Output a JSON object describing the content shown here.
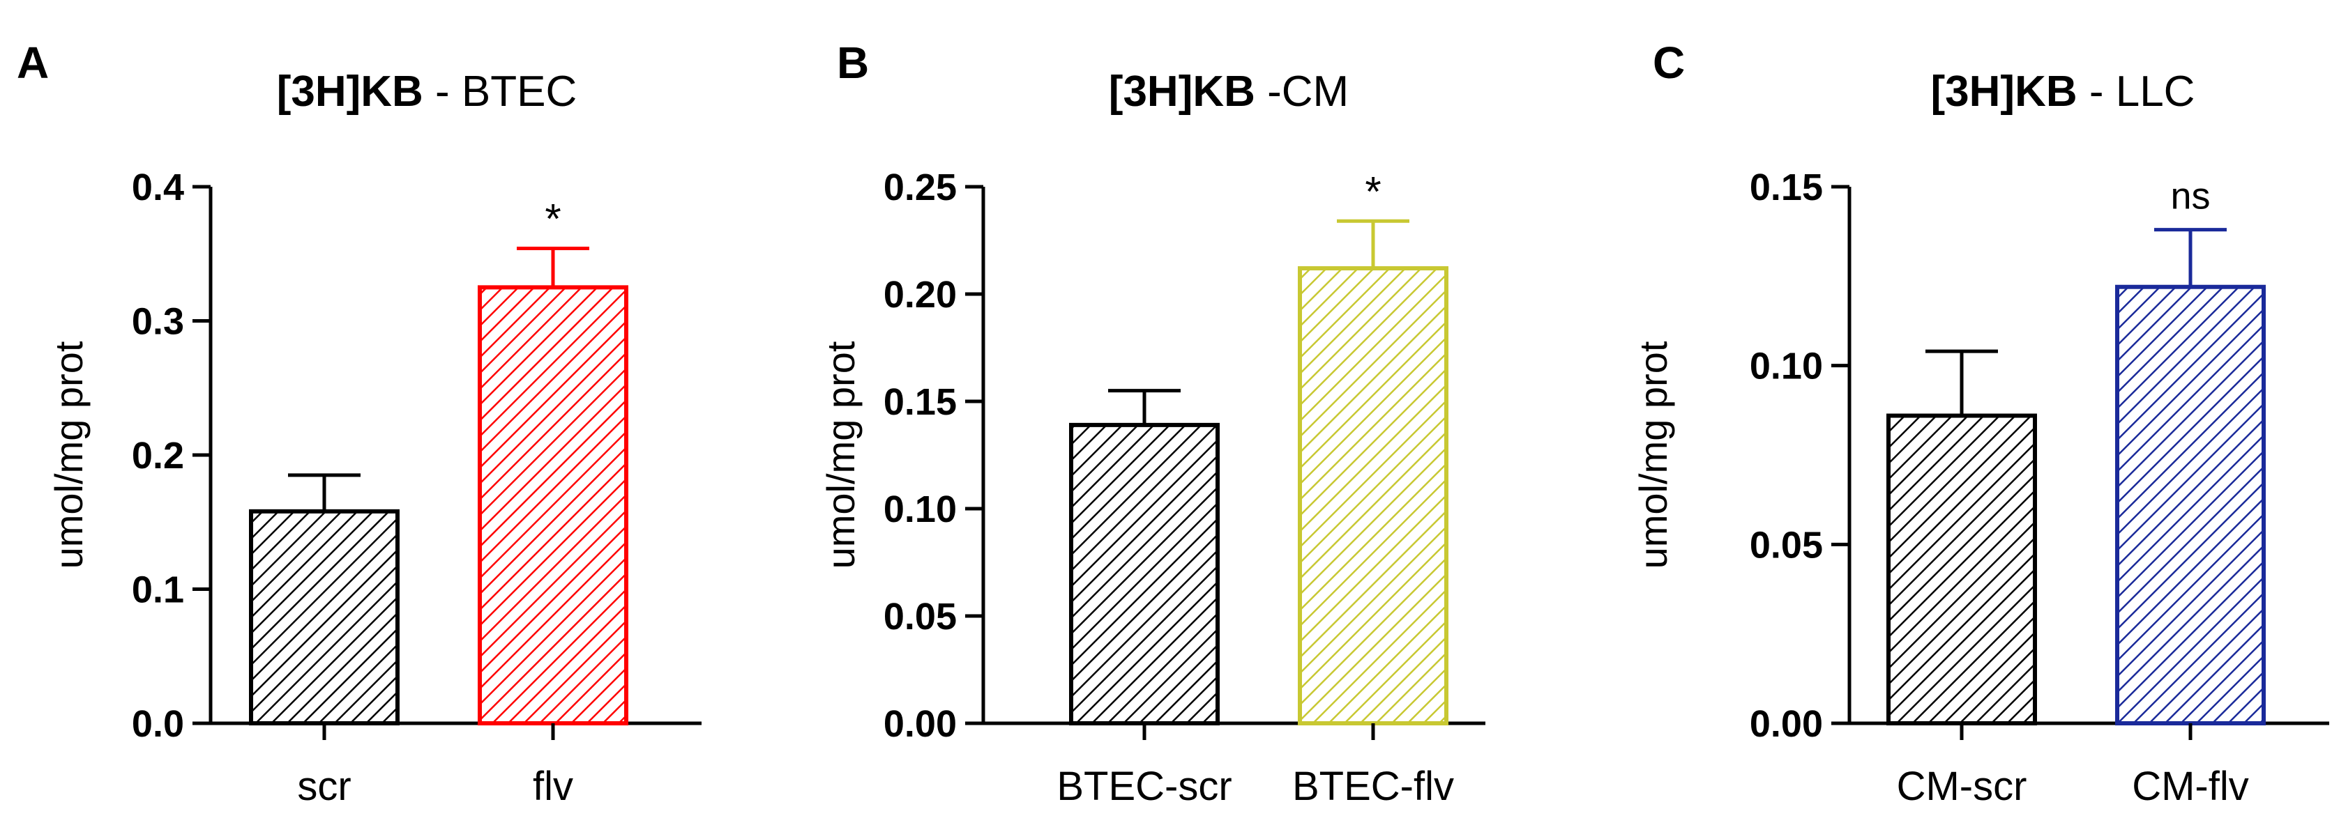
{
  "chart_data": [
    {
      "type": "bar",
      "panel_label": "A",
      "title_bold": "[3H]KB",
      "title_rest": " - BTEC",
      "xlabel": "",
      "ylabel": "umol/mg prot",
      "ylim": [
        0,
        0.4
      ],
      "yticks": [
        "0.0",
        "0.1",
        "0.2",
        "0.3",
        "0.4"
      ],
      "categories": [
        "scr",
        "flv"
      ],
      "values": [
        0.158,
        0.325
      ],
      "errors": [
        0.027,
        0.029
      ],
      "colors": [
        "#000000",
        "#ff0000"
      ],
      "annotations": [
        "",
        "*"
      ]
    },
    {
      "type": "bar",
      "panel_label": "B",
      "title_bold": "[3H]KB",
      "title_rest": " -CM",
      "xlabel": "",
      "ylabel": "umol/mg prot",
      "ylim": [
        0,
        0.25
      ],
      "yticks": [
        "0.00",
        "0.05",
        "0.10",
        "0.15",
        "0.20",
        "0.25"
      ],
      "categories": [
        "BTEC-scr",
        "BTEC-flv"
      ],
      "values": [
        0.139,
        0.212
      ],
      "errors": [
        0.016,
        0.022
      ],
      "colors": [
        "#000000",
        "#c8c832"
      ],
      "annotations": [
        "",
        "*"
      ]
    },
    {
      "type": "bar",
      "panel_label": "C",
      "title_bold": "[3H]KB",
      "title_rest": " - LLC",
      "xlabel": "",
      "ylabel": "umol/mg prot",
      "ylim": [
        0,
        0.15
      ],
      "yticks": [
        "0.00",
        "0.05",
        "0.10",
        "0.15"
      ],
      "categories": [
        "CM-scr",
        "CM-flv"
      ],
      "values": [
        0.086,
        0.122
      ],
      "errors": [
        0.018,
        0.016
      ],
      "colors": [
        "#000000",
        "#1a2a9a"
      ],
      "annotations": [
        "",
        "ns"
      ]
    }
  ]
}
